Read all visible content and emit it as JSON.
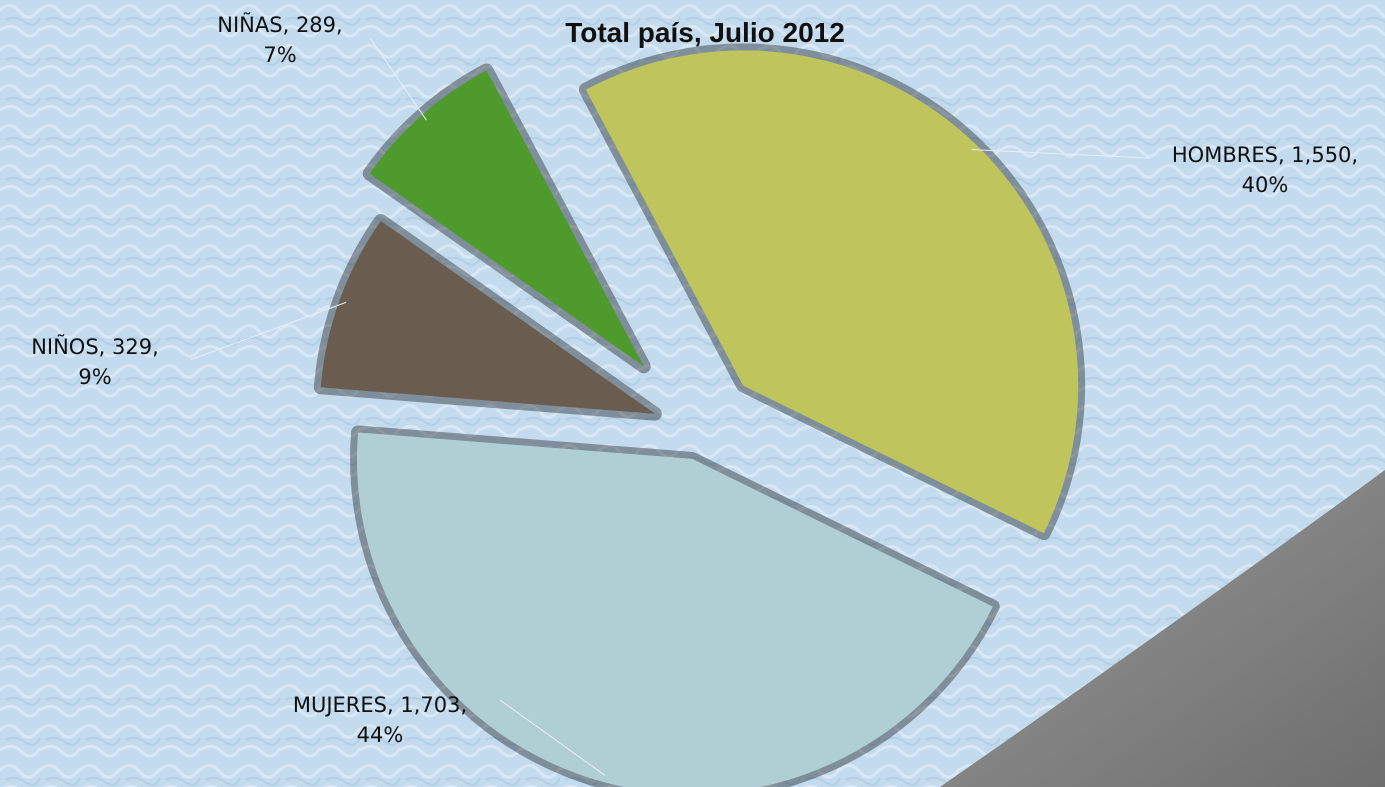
{
  "chart_data": {
    "type": "pie",
    "title": "Total país,  Julio  2012",
    "categories": [
      "HOMBRES",
      "MUJERES",
      "NIÑOS",
      "NIÑAS"
    ],
    "values": [
      1550,
      1703,
      329,
      289
    ],
    "value_labels": [
      "1,550",
      "1,703",
      "329",
      "289"
    ],
    "percentages": [
      40,
      44,
      9,
      7
    ],
    "percentage_labels": [
      "40%",
      "44%",
      "9%",
      "7%"
    ],
    "colors": [
      "#bfc45c",
      "#afcfd4",
      "#6a5d50",
      "#4f9a2c"
    ]
  }
}
